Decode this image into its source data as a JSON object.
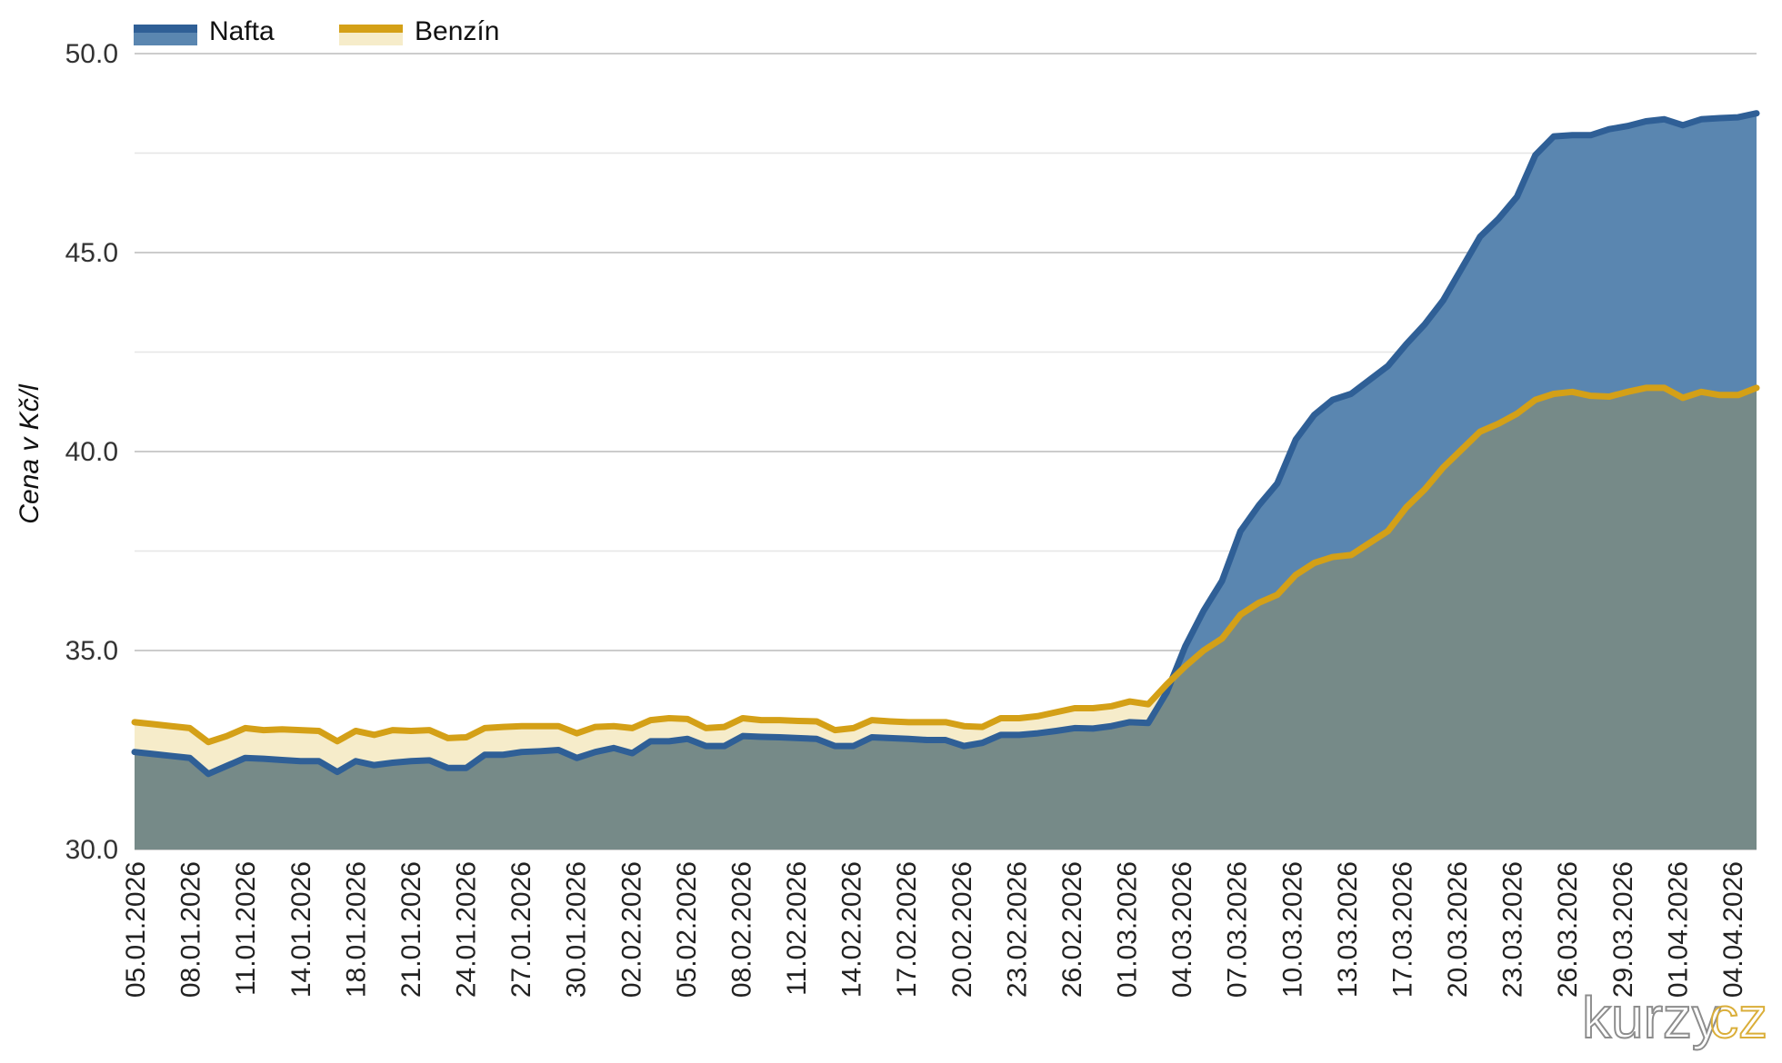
{
  "chart_data": {
    "type": "area",
    "ylabel": "Cena v Kč/l",
    "ylim": [
      30,
      50
    ],
    "yticks": [
      "30.0",
      "35.0",
      "40.0",
      "45.0",
      "50.0"
    ],
    "grid": true,
    "legend_position": "top-left",
    "colors": {
      "nafta_line": "#2f5f96",
      "nafta_fill": "#5a86b0",
      "benzin_line": "#d4a017",
      "benzin_fill": "#f6ecca",
      "overlap_fill": "#768a88",
      "gridline": "#d9d9d9"
    },
    "x_tick_labels": [
      "05.01.2026",
      "08.01.2026",
      "11.01.2026",
      "14.01.2026",
      "18.01.2026",
      "21.01.2026",
      "24.01.2026",
      "27.01.2026",
      "30.01.2026",
      "02.02.2026",
      "05.02.2026",
      "08.02.2026",
      "11.02.2026",
      "14.02.2026",
      "17.02.2026",
      "20.02.2026",
      "23.02.2026",
      "26.02.2026",
      "01.03.2026",
      "04.03.2026",
      "07.03.2026",
      "10.03.2026",
      "13.03.2026",
      "17.03.2026",
      "20.03.2026",
      "23.03.2026",
      "26.03.2026",
      "29.03.2026",
      "01.04.2026",
      "04.04.2026"
    ],
    "series": [
      {
        "name": "Nafta",
        "values": [
          32.45,
          32.4,
          32.35,
          32.3,
          31.9,
          32.1,
          32.3,
          32.28,
          32.25,
          32.22,
          32.22,
          31.95,
          32.22,
          32.12,
          32.18,
          32.22,
          32.24,
          32.05,
          32.05,
          32.38,
          32.38,
          32.45,
          32.47,
          32.5,
          32.3,
          32.45,
          32.55,
          32.42,
          32.72,
          32.72,
          32.78,
          32.6,
          32.6,
          32.85,
          32.83,
          32.82,
          32.8,
          32.78,
          32.6,
          32.6,
          32.82,
          32.8,
          32.78,
          32.75,
          32.75,
          32.6,
          32.68,
          32.88,
          32.88,
          32.92,
          32.98,
          33.05,
          33.04,
          33.1,
          33.2,
          33.18,
          33.95,
          35.1,
          36.0,
          36.75,
          38.0,
          38.65,
          39.2,
          40.3,
          40.92,
          41.3,
          41.45,
          41.8,
          42.15,
          42.7,
          43.2,
          43.8,
          44.6,
          45.4,
          45.85,
          46.4,
          47.45,
          47.92,
          47.95,
          47.95,
          48.1,
          48.18,
          48.3,
          48.35,
          48.2,
          48.35,
          48.38,
          48.4,
          48.5
        ]
      },
      {
        "name": "Benzín",
        "values": [
          33.2,
          33.15,
          33.1,
          33.05,
          32.7,
          32.85,
          33.05,
          33.0,
          33.02,
          33.0,
          32.98,
          32.72,
          32.98,
          32.88,
          33.0,
          32.98,
          33.0,
          32.8,
          32.82,
          33.05,
          33.08,
          33.1,
          33.1,
          33.1,
          32.92,
          33.08,
          33.1,
          33.05,
          33.25,
          33.3,
          33.28,
          33.05,
          33.08,
          33.3,
          33.25,
          33.25,
          33.23,
          33.22,
          33.0,
          33.05,
          33.25,
          33.22,
          33.2,
          33.2,
          33.2,
          33.1,
          33.08,
          33.3,
          33.3,
          33.35,
          33.45,
          33.55,
          33.55,
          33.6,
          33.72,
          33.65,
          34.15,
          34.6,
          35.0,
          35.3,
          35.9,
          36.2,
          36.4,
          36.9,
          37.2,
          37.35,
          37.4,
          37.7,
          38.0,
          38.6,
          39.05,
          39.6,
          40.05,
          40.5,
          40.7,
          40.95,
          41.3,
          41.45,
          41.5,
          41.4,
          41.38,
          41.5,
          41.6,
          41.6,
          41.35,
          41.5,
          41.42,
          41.42,
          41.6
        ]
      }
    ]
  },
  "watermark": {
    "part1": "kurzy",
    "part2": "cz",
    "color1": "#7a7a7a",
    "color2": "#d4a017"
  }
}
